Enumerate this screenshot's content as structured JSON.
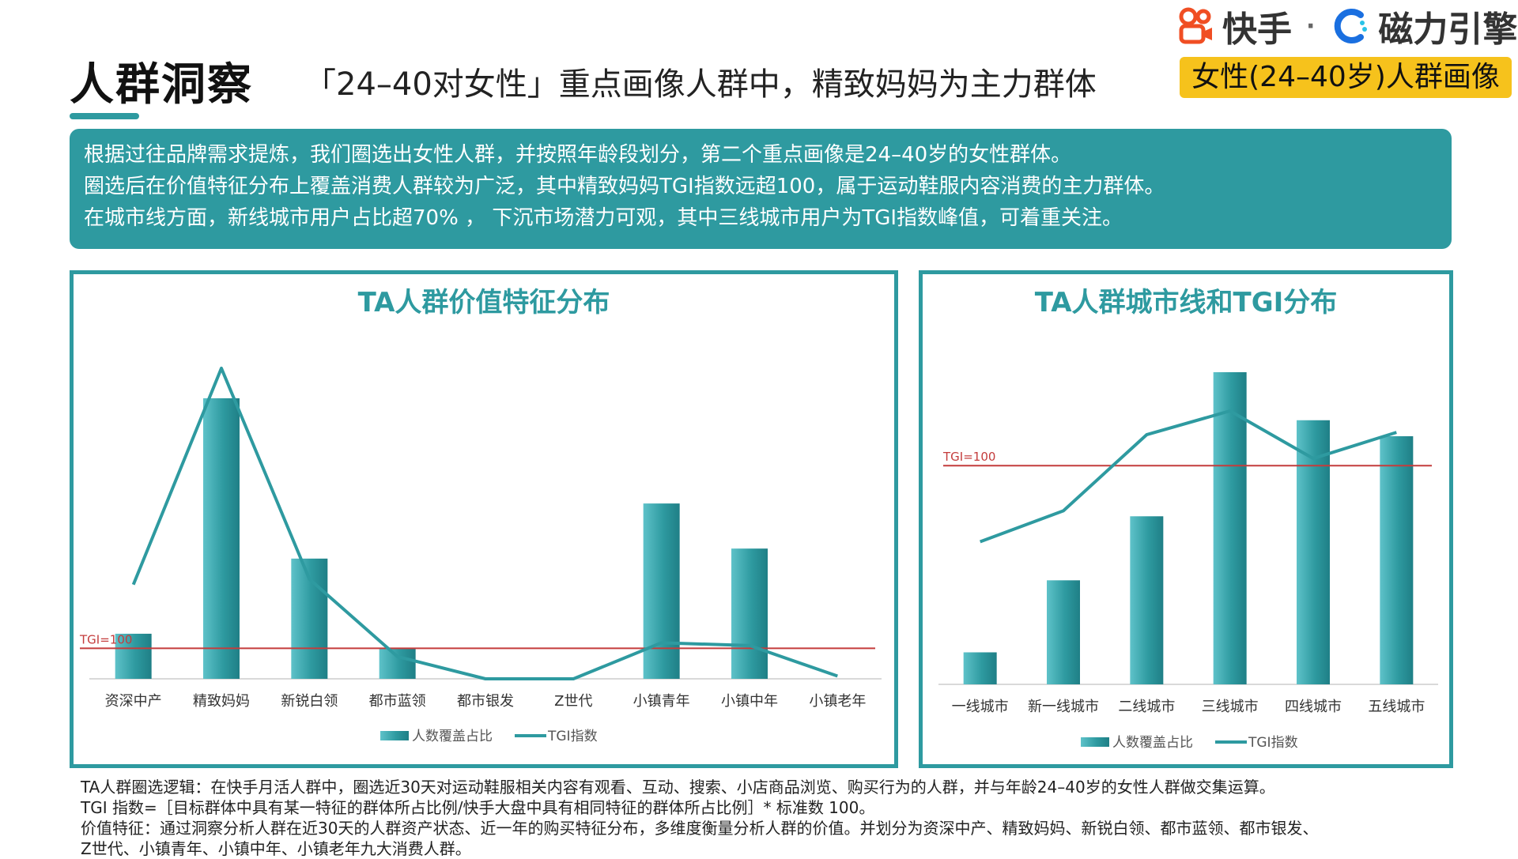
{
  "header": {
    "title": "人群洞察",
    "headline": "「24–40对女性」重点画像人群中，精致妈妈为主力群体",
    "badge": "女性(24–40岁)人群画像",
    "brand": {
      "kuaishou": "快手",
      "separator": "·",
      "cili": "磁力引擎"
    }
  },
  "summary": [
    "根据过往品牌需求提炼，我们圈选出女性人群，并按照年龄段划分，第二个重点画像是24–40岁的女性群体。",
    "圈选后在价值特征分布上覆盖消费人群较为广泛，其中精致妈妈TGI指数远超100，属于运动鞋服内容消费的主力群体。",
    "在城市线方面，新线城市用户占比超70% ， 下沉市场潜力可观，其中三线城市用户为TGI指数峰值，可着重关注。"
  ],
  "chart_data": [
    {
      "type": "bar",
      "title": "TA人群价值特征分布",
      "categories": [
        "资深中产",
        "精致妈妈",
        "新锐白领",
        "都市蓝领",
        "都市银发",
        "Z世代",
        "小镇青年",
        "小镇中年",
        "小镇老年"
      ],
      "series": [
        {
          "name": "人数覆盖占比",
          "type": "bar",
          "values": [
            4.5,
            28,
            12,
            3,
            0,
            0,
            17.5,
            13,
            0
          ]
        },
        {
          "name": "TGI指数",
          "type": "line",
          "values": [
            170,
            560,
            180,
            40,
            0,
            0,
            65,
            60,
            5
          ]
        }
      ],
      "reference_line": {
        "label": "TGI=100",
        "value": 55
      },
      "legend": "bottom-center",
      "colors": {
        "bar": "#2e9aa0",
        "line": "#2e9aa0",
        "reference": "#c43c3c"
      }
    },
    {
      "type": "bar",
      "title": "TA人群城市线和TGI分布",
      "categories": [
        "一线城市",
        "新一线城市",
        "二线城市",
        "三线城市",
        "四线城市",
        "五线城市"
      ],
      "series": [
        {
          "name": "人数覆盖占比",
          "type": "bar",
          "values": [
            4,
            13,
            21,
            39,
            33,
            31
          ]
        },
        {
          "name": "TGI指数",
          "type": "line",
          "values": [
            60,
            73,
            105,
            115,
            95,
            106
          ]
        }
      ],
      "reference_line": {
        "label": "TGI=100",
        "value": 92
      },
      "legend": "bottom-center",
      "colors": {
        "bar": "#2e9aa0",
        "line": "#2e9aa0",
        "reference": "#c43c3c"
      }
    }
  ],
  "footnotes": [
    "TA人群圈选逻辑：在快手月活人群中，圈选近30天对运动鞋服相关内容有观看、互动、搜索、小店商品浏览、购买行为的人群，并与年龄24–40岁的女性人群做交集运算。",
    "TGI 指数=［目标群体中具有某一特征的群体所占比例/快手大盘中具有相同特征的群体所占比例］* 标准数 100。",
    "价值特征：通过洞察分析人群在近30天的人群资产状态、近一年的购买特征分布，多维度衡量分析人群的价值。并划分为资深中产、精致妈妈、新锐白领、都市蓝领、都市银发、",
    "Z世代、小镇青年、小镇中年、小镇老年九大消费人群。"
  ]
}
